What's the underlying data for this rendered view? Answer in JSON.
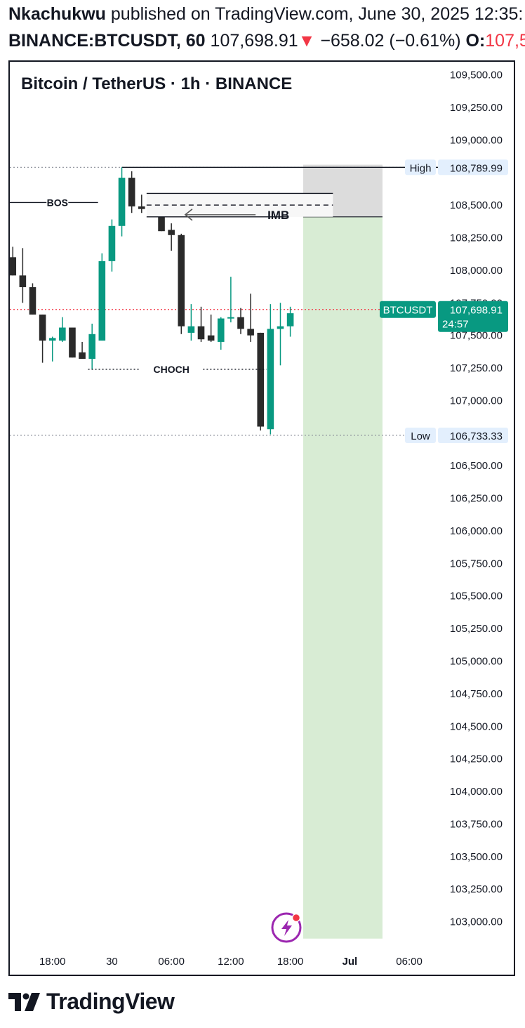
{
  "header": {
    "author": "Nkachukwu",
    "published_text": "published on TradingView.com, June 30, 2025 12:35:",
    "symbol": "BINANCE:BTCUSDT, 60",
    "price": "107,698.91",
    "arrow": "▼",
    "change": "−658.02 (−0.61%)",
    "open_label": "O:",
    "open_value": "107,5"
  },
  "chart_title": "Bitcoin / TetherUS · 1h · BINANCE",
  "footer": {
    "brand": "TradingView"
  },
  "colors": {
    "up": "#089981",
    "down": "#2a2a2a",
    "current": "#089981",
    "red": "#f23645",
    "range_target": "#d8ecd4",
    "range_stop": "#dcdcdc",
    "label_bg": "#e3effd"
  },
  "chart_data": {
    "type": "candlestick",
    "title": "Bitcoin / TetherUS · 1h · BINANCE",
    "ylim": [
      102820,
      109600
    ],
    "y_ticks": [
      109500,
      109250,
      109000,
      108750,
      108500,
      108250,
      108000,
      107750,
      107500,
      107250,
      107000,
      106750,
      106500,
      106250,
      106000,
      105750,
      105500,
      105250,
      105000,
      104750,
      104500,
      104250,
      104000,
      103750,
      103500,
      103250,
      103000
    ],
    "y_tick_labels": [
      "109,500.00",
      "109,250.00",
      "109,000.00",
      "",
      "108,500.00",
      "108,250.00",
      "108,000.00",
      "107,750.00",
      "107,500.00",
      "107,250.00",
      "107,000.00",
      "",
      "106,500.00",
      "106,250.00",
      "106,000.00",
      "105,750.00",
      "105,500.00",
      "105,250.00",
      "105,000.00",
      "104,750.00",
      "104,500.00",
      "104,250.00",
      "104,000.00",
      "103,750.00",
      "103,500.00",
      "103,250.00",
      "103,000.00"
    ],
    "x_ticks": [
      {
        "bar": 4,
        "label": "18:00",
        "bold": false
      },
      {
        "bar": 10,
        "label": "30",
        "bold": false
      },
      {
        "bar": 16,
        "label": "06:00",
        "bold": false
      },
      {
        "bar": 22,
        "label": "12:00",
        "bold": false
      },
      {
        "bar": 28,
        "label": "18:00",
        "bold": false
      },
      {
        "bar": 34,
        "label": "Jul",
        "bold": true
      },
      {
        "bar": 40,
        "label": "06:00",
        "bold": false
      }
    ],
    "bars_visible_start": -0.3,
    "bars_visible_end": 42.9,
    "candles": [
      {
        "o": 108100,
        "h": 108180,
        "l": 107960,
        "c": 107960
      },
      {
        "o": 107960,
        "h": 108170,
        "l": 107750,
        "c": 107870
      },
      {
        "o": 107870,
        "h": 107900,
        "l": 107660,
        "c": 107660
      },
      {
        "o": 107660,
        "h": 107660,
        "l": 107290,
        "c": 107460
      },
      {
        "o": 107460,
        "h": 107490,
        "l": 107300,
        "c": 107480
      },
      {
        "o": 107460,
        "h": 107640,
        "l": 107450,
        "c": 107560
      },
      {
        "o": 107560,
        "h": 107560,
        "l": 107330,
        "c": 107330
      },
      {
        "o": 107370,
        "h": 107450,
        "l": 107320,
        "c": 107320
      },
      {
        "o": 107320,
        "h": 107590,
        "l": 107240,
        "c": 107510
      },
      {
        "o": 107460,
        "h": 108130,
        "l": 107460,
        "c": 108070
      },
      {
        "o": 108070,
        "h": 108390,
        "l": 107990,
        "c": 108340
      },
      {
        "o": 108340,
        "h": 108790,
        "l": 108260,
        "c": 108710
      },
      {
        "o": 108710,
        "h": 108760,
        "l": 108440,
        "c": 108490
      },
      {
        "o": 108490,
        "h": 108580,
        "l": 108440,
        "c": 108470
      },
      {
        "o": 108480,
        "h": 108590,
        "l": 108410,
        "c": 108500
      },
      {
        "o": 108510,
        "h": 108530,
        "l": 108300,
        "c": 108300
      },
      {
        "o": 108310,
        "h": 108360,
        "l": 108150,
        "c": 108270
      },
      {
        "o": 108270,
        "h": 108280,
        "l": 107510,
        "c": 107570
      },
      {
        "o": 107520,
        "h": 107740,
        "l": 107460,
        "c": 107570
      },
      {
        "o": 107570,
        "h": 107720,
        "l": 107450,
        "c": 107470
      },
      {
        "o": 107500,
        "h": 107660,
        "l": 107450,
        "c": 107460
      },
      {
        "o": 107450,
        "h": 107640,
        "l": 107390,
        "c": 107630
      },
      {
        "o": 107630,
        "h": 107950,
        "l": 107600,
        "c": 107640
      },
      {
        "o": 107640,
        "h": 107710,
        "l": 107510,
        "c": 107550
      },
      {
        "o": 107550,
        "h": 107820,
        "l": 107450,
        "c": 107500
      },
      {
        "o": 107520,
        "h": 107520,
        "l": 106770,
        "c": 106800
      },
      {
        "o": 106780,
        "h": 107740,
        "l": 106740,
        "c": 107550
      },
      {
        "o": 107550,
        "h": 107750,
        "l": 107270,
        "c": 107570
      },
      {
        "o": 107570,
        "h": 107720,
        "l": 107490,
        "c": 107670
      }
    ],
    "annotations": {
      "bos": {
        "label": "BOS",
        "price": 108520,
        "bar_from": -0.3,
        "bar_to": 8.6
      },
      "choch": {
        "label": "CHOCH",
        "price": 107240,
        "bar_from": 7.6,
        "bar_to": 25.6
      },
      "imb": {
        "label": "IMB",
        "price": 108410,
        "top": 108590,
        "mid": 108500,
        "bar_from": 13.5,
        "bar_to": 32.3
      },
      "high_line": {
        "label": "High",
        "value": "108,789.99",
        "price": 108790
      },
      "low_line": {
        "label": "Low",
        "value": "106,733.33",
        "price": 106733
      },
      "current_price": {
        "symbol": "BTCUSDT",
        "value": "107,698.91",
        "countdown": "24:57",
        "price": 107698.91
      },
      "position": {
        "bar_from": 29.3,
        "bar_to": 37.3,
        "entry": 108410,
        "stop": 108810,
        "target": 102870
      }
    }
  }
}
